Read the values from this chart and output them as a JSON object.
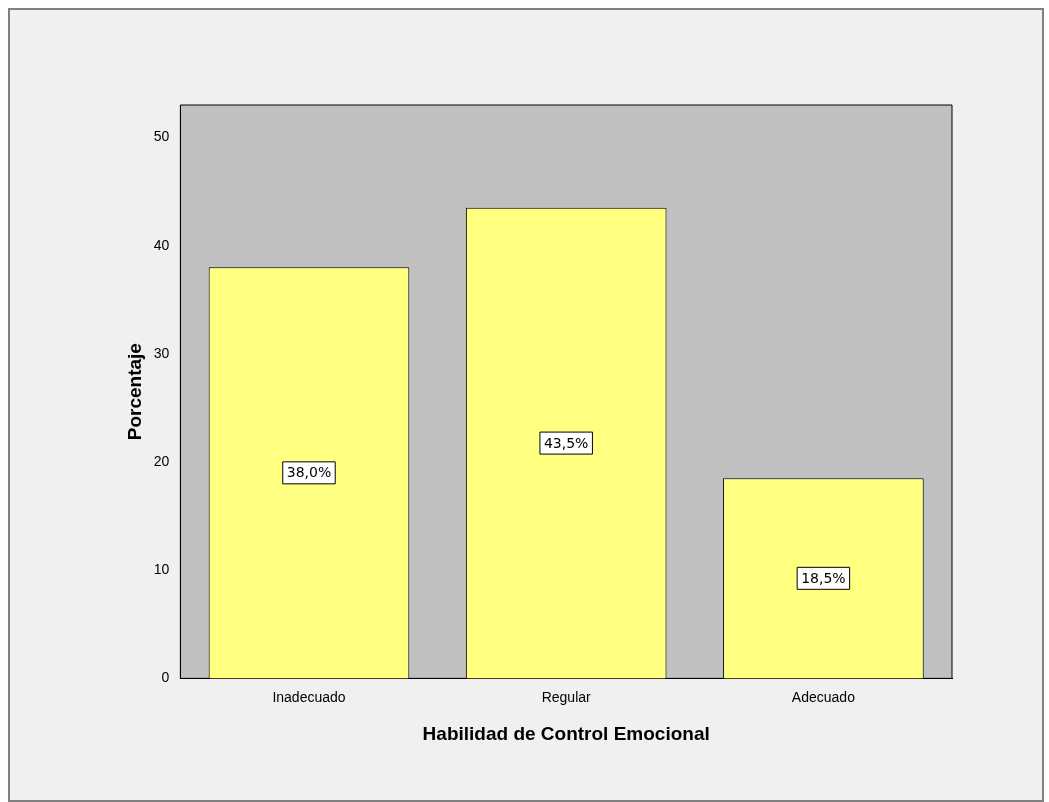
{
  "chart_data": {
    "type": "bar",
    "xlabel": "Habilidad de Control Emocional",
    "ylabel": "Porcentaje",
    "categories": [
      "Inadecuado",
      "Regular",
      "Adecuado"
    ],
    "values": [
      38.0,
      43.5,
      18.5
    ],
    "color": "#ffff80",
    "value_labels": [
      "38,0%",
      "43,5%",
      "18,5%"
    ],
    "ylim": [
      0,
      53
    ],
    "yticks": [
      0,
      10,
      20,
      30,
      40,
      50
    ],
    "grid": false,
    "legend": false
  }
}
